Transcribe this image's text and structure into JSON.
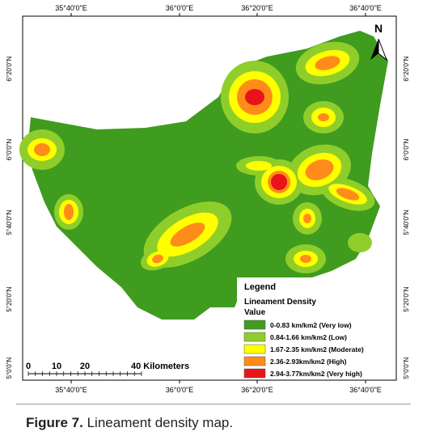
{
  "map": {
    "longitudes": [
      "35°40'0\"E",
      "36°0'0\"E",
      "36°20'0\"E",
      "36°40'0\"E"
    ],
    "latitudes": [
      "6°20'0\"N",
      "6°0'0\"N",
      "5°40'0\"N",
      "5°20'0\"N",
      "5°0'0\"N"
    ],
    "north": "N",
    "scale": {
      "ticks": [
        0,
        10,
        20
      ],
      "label": "40 Kilometers"
    },
    "legend": {
      "title": "Legend",
      "subtitle": "Lineament Density",
      "heading": "Value",
      "classes": [
        {
          "label": "0-0.83 km/km2 (Very low)",
          "color": "#3f9c1e"
        },
        {
          "label": "0.84-1.66 km/km2 (Low)",
          "color": "#8fce2a"
        },
        {
          "label": "1.67-2.35 km/km2 (Moderate)",
          "color": "#ffff00"
        },
        {
          "label": "2.36-2.93km/km2 (High)",
          "color": "#ff8c1a"
        },
        {
          "label": "2.94-3.77km/km2 (Very high)",
          "color": "#e8141a"
        }
      ]
    }
  },
  "caption": {
    "label": "Figure 7.",
    "text": "Lineament density map."
  }
}
